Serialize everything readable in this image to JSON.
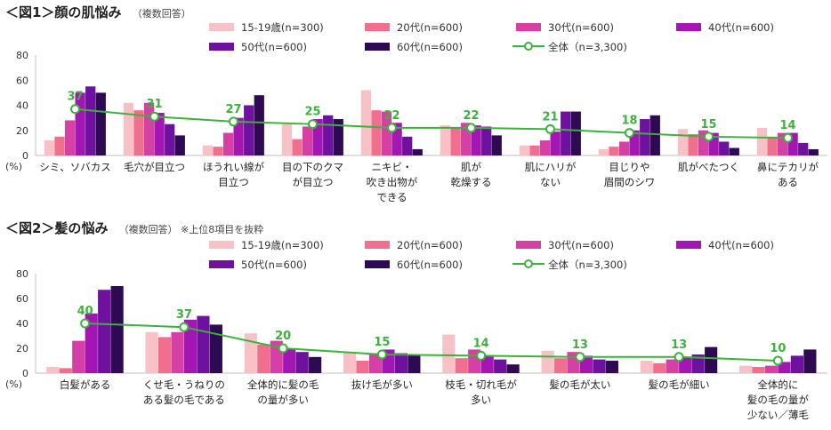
{
  "colors": {
    "s1519": "#f7c1c5",
    "s20": "#f26e8f",
    "s30": "#d63fa4",
    "s40": "#a316b3",
    "s50": "#6e119e",
    "s60": "#2d0a52",
    "overall": "#3cb13c",
    "axis": "#bfbfbf"
  },
  "chart_data": [
    {
      "type": "bar",
      "title": "＜図1＞顔の肌悩み",
      "subtitle": "（複数回答）",
      "ylabel": "(%)",
      "ylim": [
        0,
        80
      ],
      "yticks": [
        "0",
        "20",
        "40",
        "60",
        "80"
      ],
      "grid": false,
      "legend_position": "top",
      "categories": [
        "シミ、ソバカス",
        "毛穴が目立つ",
        "ほうれい線が|目立つ",
        "目の下のクマ|が目立つ",
        "ニキビ・|吹き出物が|できる",
        "肌が|乾燥する",
        "肌にハリが|ない",
        "目じりや|眉間のシワ",
        "肌がべたつく",
        "鼻にテカリが|ある"
      ],
      "series": [
        {
          "name": "15-19歳(n=300)",
          "color_key": "s1519",
          "values": [
            12,
            42,
            8,
            25,
            52,
            24,
            8,
            5,
            21,
            22
          ]
        },
        {
          "name": "20代(n=600)",
          "color_key": "s20",
          "values": [
            15,
            36,
            7,
            13,
            36,
            22,
            8,
            7,
            17,
            15
          ]
        },
        {
          "name": "30代(n=600)",
          "color_key": "s30",
          "values": [
            28,
            42,
            18,
            23,
            35,
            26,
            12,
            11,
            20,
            18
          ]
        },
        {
          "name": "40代(n=600)",
          "color_key": "s40",
          "values": [
            50,
            34,
            30,
            29,
            26,
            24,
            19,
            20,
            18,
            18
          ]
        },
        {
          "name": "50代(n=600)",
          "color_key": "s50",
          "values": [
            55,
            25,
            40,
            32,
            15,
            23,
            35,
            29,
            11,
            10
          ]
        },
        {
          "name": "60代(n=600)",
          "color_key": "s60",
          "values": [
            50,
            16,
            48,
            29,
            5,
            16,
            35,
            32,
            6,
            5
          ]
        }
      ],
      "line": {
        "name": "全体（n=3,300)",
        "values": [
          37,
          31,
          27,
          25,
          22,
          22,
          21,
          18,
          15,
          14
        ]
      }
    },
    {
      "type": "bar",
      "title": "＜図2＞髪の悩み",
      "subtitle": "（複数回答） ※上位8項目を抜粋",
      "ylabel": "(%)",
      "ylim": [
        0,
        80
      ],
      "yticks": [
        "0",
        "20",
        "40",
        "60",
        "80"
      ],
      "grid": false,
      "legend_position": "top",
      "categories": [
        "白髪がある",
        "くせ毛・うねりの|ある髪の毛である",
        "全体的に髪の毛|の量が多い",
        "抜け毛が多い",
        "枝毛・切れ毛が|多い",
        "髪の毛が太い",
        "髪の毛が細い",
        "全体的に|髪の毛の量が|少ない／薄毛"
      ],
      "series": [
        {
          "name": "15-19歳(n=300)",
          "color_key": "s1519",
          "values": [
            5,
            33,
            32,
            17,
            31,
            18,
            10,
            6
          ]
        },
        {
          "name": "20代(n=600)",
          "color_key": "s20",
          "values": [
            4,
            29,
            23,
            10,
            12,
            12,
            8,
            5
          ]
        },
        {
          "name": "30代(n=600)",
          "color_key": "s30",
          "values": [
            26,
            33,
            26,
            16,
            19,
            17,
            11,
            6
          ]
        },
        {
          "name": "40代(n=600)",
          "color_key": "s40",
          "values": [
            48,
            43,
            20,
            19,
            14,
            14,
            13,
            9
          ]
        },
        {
          "name": "50代(n=600)",
          "color_key": "s50",
          "values": [
            67,
            46,
            17,
            16,
            11,
            11,
            15,
            14
          ]
        },
        {
          "name": "60代(n=600)",
          "color_key": "s60",
          "values": [
            70,
            39,
            13,
            15,
            7,
            10,
            21,
            19
          ]
        }
      ],
      "line": {
        "name": "全体（n=3,300)",
        "values": [
          40,
          37,
          20,
          15,
          14,
          13,
          13,
          10
        ]
      }
    }
  ]
}
